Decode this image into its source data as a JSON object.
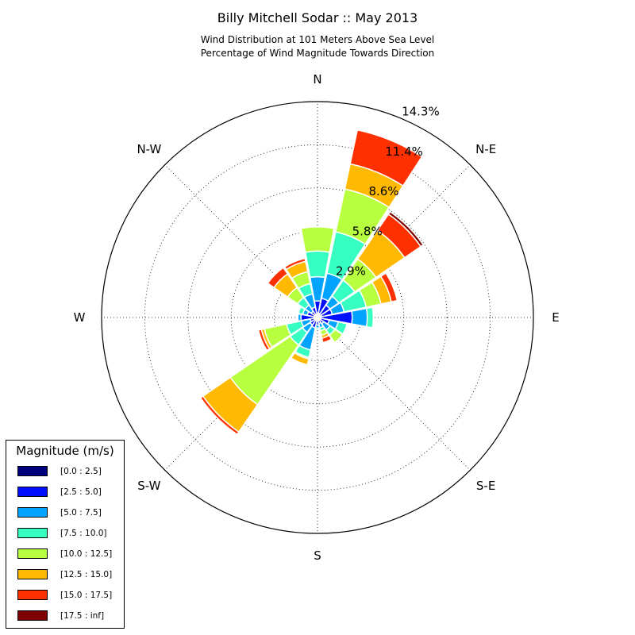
{
  "title": "Billy Mitchell Sodar :: May 2013",
  "subtitle_line1": "Wind Distribution at 101 Meters Above Sea Level",
  "subtitle_line2": "Percentage of Wind Magnitude Towards Direction",
  "chart_data": {
    "type": "polar-stacked-bar",
    "direction_labels": [
      "N",
      "N-E",
      "E",
      "S-E",
      "S",
      "S-W",
      "W",
      "N-W"
    ],
    "radial_ticks": [
      "2.9%",
      "5.8%",
      "8.6%",
      "11.4%",
      "14.3%"
    ],
    "radial_tick_values": [
      2.86,
      5.72,
      8.58,
      11.44,
      14.3
    ],
    "rmax": 14.3,
    "bins": [
      {
        "label": "[0.0 : 2.5]",
        "color": "#00007f"
      },
      {
        "label": "[2.5 : 5.0]",
        "color": "#0010ff"
      },
      {
        "label": "[5.0 : 7.5]",
        "color": "#00a4ff"
      },
      {
        "label": "[7.5 : 10.0]",
        "color": "#36ffc1"
      },
      {
        "label": "[10.0 : 12.5]",
        "color": "#b7ff3f"
      },
      {
        "label": "[12.5 : 15.0]",
        "color": "#ffb900"
      },
      {
        "label": "[15.0 : 17.5]",
        "color": "#ff3000"
      },
      {
        "label": "[17.5 : inf]",
        "color": "#7f0000"
      }
    ],
    "sectors": [
      {
        "direction": 0,
        "cumulative": [
          0.3,
          1.1,
          2.7,
          4.4,
          6.0,
          6.0,
          6.0,
          6.0
        ]
      },
      {
        "direction": 22.5,
        "cumulative": [
          0.3,
          1.3,
          3.0,
          5.8,
          8.7,
          10.4,
          12.7,
          12.7
        ]
      },
      {
        "direction": 45,
        "cumulative": [
          0.2,
          1.0,
          1.7,
          3.0,
          4.7,
          7.0,
          8.3,
          8.5
        ]
      },
      {
        "direction": 67.5,
        "cumulative": [
          0.3,
          1.0,
          1.8,
          3.3,
          4.3,
          5.0,
          5.4,
          5.4
        ]
      },
      {
        "direction": 90,
        "cumulative": [
          0.2,
          2.3,
          3.3,
          3.7,
          3.7,
          3.7,
          3.7,
          3.7
        ]
      },
      {
        "direction": 112.5,
        "cumulative": [
          0.2,
          0.8,
          1.4,
          2.0,
          2.0,
          2.0,
          2.0,
          2.0
        ]
      },
      {
        "direction": 135,
        "cumulative": [
          0.2,
          0.5,
          1.0,
          1.4,
          2.0,
          2.0,
          2.0,
          2.0
        ]
      },
      {
        "direction": 157.5,
        "cumulative": [
          0.2,
          0.4,
          0.7,
          0.9,
          1.2,
          1.4,
          1.7,
          1.7
        ]
      },
      {
        "direction": 180,
        "cumulative": [
          0.2,
          0.5,
          0.7,
          0.8,
          0.8,
          0.8,
          0.8,
          0.8
        ]
      },
      {
        "direction": 202.5,
        "cumulative": [
          0.2,
          0.7,
          2.2,
          2.7,
          2.8,
          3.2,
          3.2,
          3.2
        ]
      },
      {
        "direction": 225,
        "cumulative": [
          0.2,
          0.6,
          1.2,
          2.2,
          7.0,
          9.2,
          9.4,
          9.4
        ]
      },
      {
        "direction": 247.5,
        "cumulative": [
          0.2,
          0.5,
          1.1,
          2.1,
          3.6,
          3.8,
          4.0,
          4.0
        ]
      },
      {
        "direction": 270,
        "cumulative": [
          0.2,
          1.1,
          1.3,
          1.3,
          1.3,
          1.3,
          1.3,
          1.3
        ]
      },
      {
        "direction": 292.5,
        "cumulative": [
          0.2,
          0.7,
          1.0,
          1.3,
          1.3,
          1.3,
          1.3,
          1.3
        ]
      },
      {
        "direction": 315,
        "cumulative": [
          0.2,
          0.5,
          1.0,
          1.6,
          2.4,
          3.5,
          4.0,
          4.0
        ]
      },
      {
        "direction": 337.5,
        "cumulative": [
          0.2,
          0.7,
          1.6,
          2.3,
          3.1,
          3.8,
          4.0,
          4.0
        ]
      }
    ]
  },
  "legend": {
    "title": "Magnitude (m/s)"
  }
}
